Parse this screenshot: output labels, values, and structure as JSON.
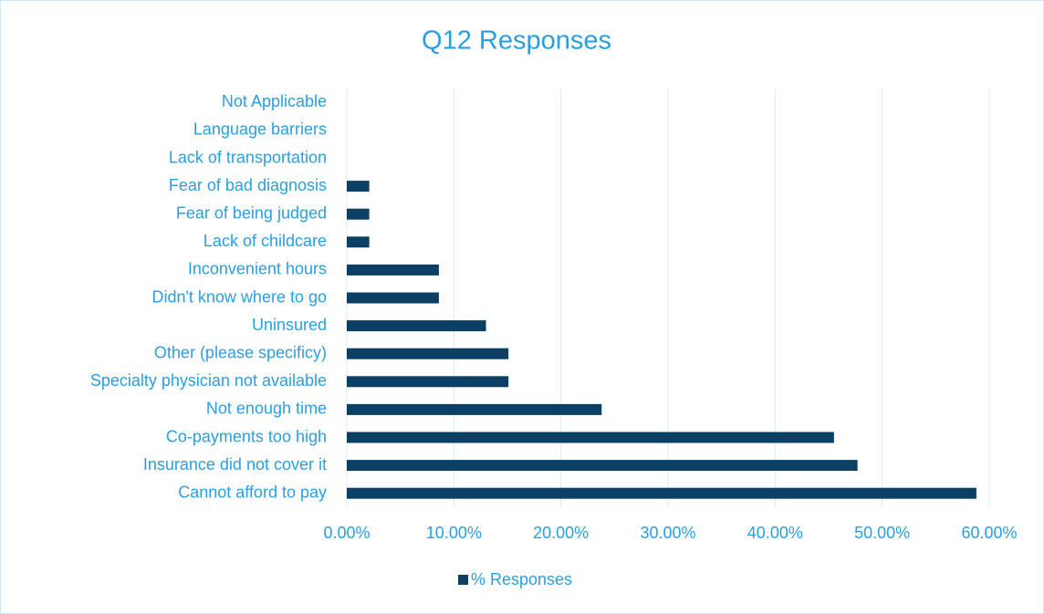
{
  "chart_data": {
    "type": "bar",
    "orientation": "horizontal",
    "title": "Q12 Responses",
    "categories": [
      "Cannot afford to pay",
      "Insurance did not cover it",
      "Co-payments too high",
      "Not enough time",
      "Specialty physician not available",
      "Other (please specificy)",
      "Uninsured",
      "Didn't know where to go",
      "Inconvenient hours",
      "Lack of childcare",
      "Fear of being judged",
      "Fear of bad diagnosis",
      "Lack of transportation",
      "Language barriers",
      "Not Applicable"
    ],
    "series": [
      {
        "name": "% Responses",
        "color": "#0b3f63",
        "values": [
          58.8,
          47.7,
          45.5,
          23.8,
          15.1,
          15.1,
          13.0,
          8.6,
          8.6,
          2.1,
          2.1,
          2.1,
          0,
          0,
          0
        ]
      }
    ],
    "xlim": [
      0,
      60
    ],
    "xticks": [
      {
        "value": 0,
        "label": "0.00%"
      },
      {
        "value": 10,
        "label": "10.00%"
      },
      {
        "value": 20,
        "label": "20.00%"
      },
      {
        "value": 30,
        "label": "30.00%"
      },
      {
        "value": 40,
        "label": "40.00%"
      },
      {
        "value": 50,
        "label": "50.00%"
      },
      {
        "value": 60,
        "label": "60.00%"
      }
    ],
    "grid": true,
    "legend": "bottom"
  }
}
